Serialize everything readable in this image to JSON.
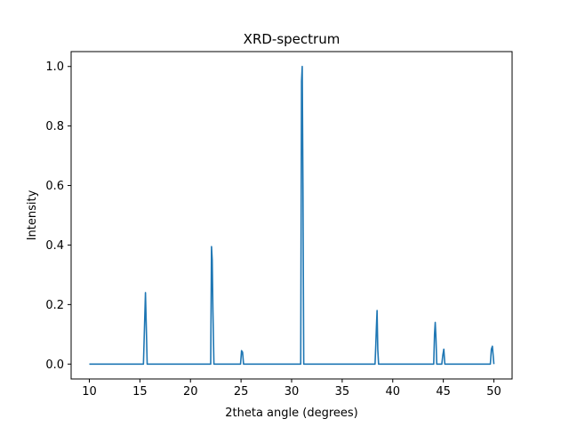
{
  "chart_data": {
    "type": "line",
    "title": "XRD-spectrum",
    "xlabel": "2theta angle (degrees)",
    "ylabel": "Intensity",
    "xlim": [
      8.2,
      51.8
    ],
    "ylim": [
      -0.05,
      1.05
    ],
    "grid": false,
    "legend": "none",
    "x_ticks": [
      10,
      15,
      20,
      25,
      30,
      35,
      40,
      45,
      50
    ],
    "x_tick_labels": [
      "10",
      "15",
      "20",
      "25",
      "30",
      "35",
      "40",
      "45",
      "50"
    ],
    "y_ticks": [
      0.0,
      0.2,
      0.4,
      0.6,
      0.8,
      1.0
    ],
    "y_tick_labels": [
      "0.0",
      "0.2",
      "0.4",
      "0.6",
      "0.8",
      "1.0"
    ],
    "series": [
      {
        "color": "#1f77b4",
        "x": [
          10.0,
          15.35,
          15.45,
          15.55,
          15.65,
          15.72,
          22.0,
          22.08,
          22.15,
          22.22,
          22.32,
          24.95,
          25.05,
          25.15,
          25.25,
          30.9,
          30.98,
          31.05,
          31.12,
          31.2,
          38.25,
          38.33,
          38.38,
          38.45,
          38.52,
          38.6,
          44.05,
          44.13,
          44.2,
          44.27,
          44.35,
          44.85,
          44.95,
          45.05,
          45.15,
          49.65,
          49.75,
          49.85,
          49.95,
          50.0
        ],
        "y": [
          0.0,
          0.0,
          0.12,
          0.24,
          0.1,
          0.0,
          0.0,
          0.395,
          0.35,
          0.18,
          0.0,
          0.0,
          0.045,
          0.04,
          0.0,
          0.0,
          0.95,
          1.0,
          0.6,
          0.0,
          0.0,
          0.07,
          0.12,
          0.18,
          0.05,
          0.0,
          0.0,
          0.1,
          0.14,
          0.09,
          0.0,
          0.0,
          0.03,
          0.05,
          0.0,
          0.0,
          0.05,
          0.06,
          0.02,
          0.0
        ]
      }
    ]
  }
}
